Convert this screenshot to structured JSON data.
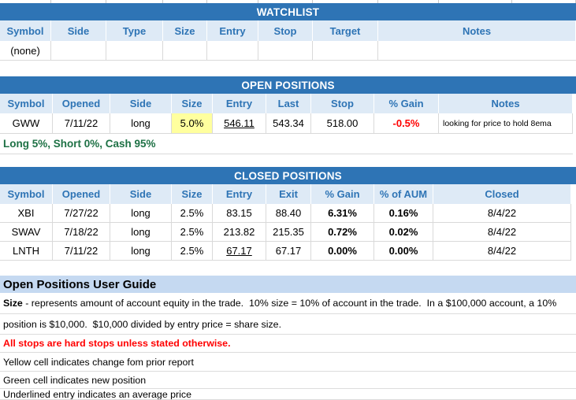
{
  "colors": {
    "section_bar_bg": "#2E74B5",
    "header_row_bg": "#DEEAF6",
    "header_text": "#2E74B5",
    "changed_cell_yellow": "#FFFF9E",
    "negative_red": "#FF0000",
    "summary_green": "#1E7145",
    "guide_bar_bg": "#C5D9F1"
  },
  "watchlist": {
    "title": "WATCHLIST",
    "columns": [
      "Symbol",
      "Side",
      "Type",
      "Size",
      "Entry",
      "Stop",
      "Target",
      "Notes"
    ],
    "rows": [
      {
        "symbol": "(none)"
      }
    ]
  },
  "open_positions": {
    "title": "OPEN POSITIONS",
    "columns": [
      "Symbol",
      "Opened",
      "Side",
      "Size",
      "Entry",
      "Last",
      "Stop",
      "% Gain",
      "Notes"
    ],
    "rows": [
      {
        "symbol": "GWW",
        "opened": "7/11/22",
        "side": "long",
        "size": "5.0%",
        "entry": "546.11",
        "last": "543.34",
        "stop": "518.00",
        "gain": "-0.5%",
        "notes": "looking for price to hold 8ema"
      }
    ],
    "summary": "Long 5%, Short 0%, Cash 95%"
  },
  "closed_positions": {
    "title": "CLOSED POSITIONS",
    "columns": [
      "Symbol",
      "Opened",
      "Side",
      "Size",
      "Entry",
      "Exit",
      "% Gain",
      "% of AUM",
      "Closed"
    ],
    "rows": [
      {
        "symbol": "XBI",
        "opened": "7/27/22",
        "side": "long",
        "size": "2.5%",
        "entry": "83.15",
        "exit": "88.40",
        "gain": "6.31%",
        "aum": "0.16%",
        "closed": "8/4/22"
      },
      {
        "symbol": "SWAV",
        "opened": "7/18/22",
        "side": "long",
        "size": "2.5%",
        "entry": "213.82",
        "exit": "215.35",
        "gain": "0.72%",
        "aum": "0.02%",
        "closed": "8/4/22"
      },
      {
        "symbol": "LNTH",
        "opened": "7/11/22",
        "side": "long",
        "size": "2.5%",
        "entry": "67.17",
        "exit": "67.17",
        "gain": "0.00%",
        "aum": "0.00%",
        "closed": "8/4/22"
      }
    ]
  },
  "user_guide": {
    "title": "Open Positions User Guide",
    "lines": [
      {
        "bold_prefix": "Size",
        "text": " - represents amount of account equity in the trade.  10% size = 10% of account in the trade.  In a $100,000 account, a 10%"
      },
      {
        "text": "position is $10,000.  $10,000 divided by entry price = share size."
      },
      {
        "text": "All stops are hard stops unless stated otherwise."
      },
      {
        "text": "Yellow cell indicates change fom prior report"
      },
      {
        "text": "Green cell indicates new position"
      },
      {
        "text": "Underlined entry indicates an average price"
      }
    ]
  }
}
